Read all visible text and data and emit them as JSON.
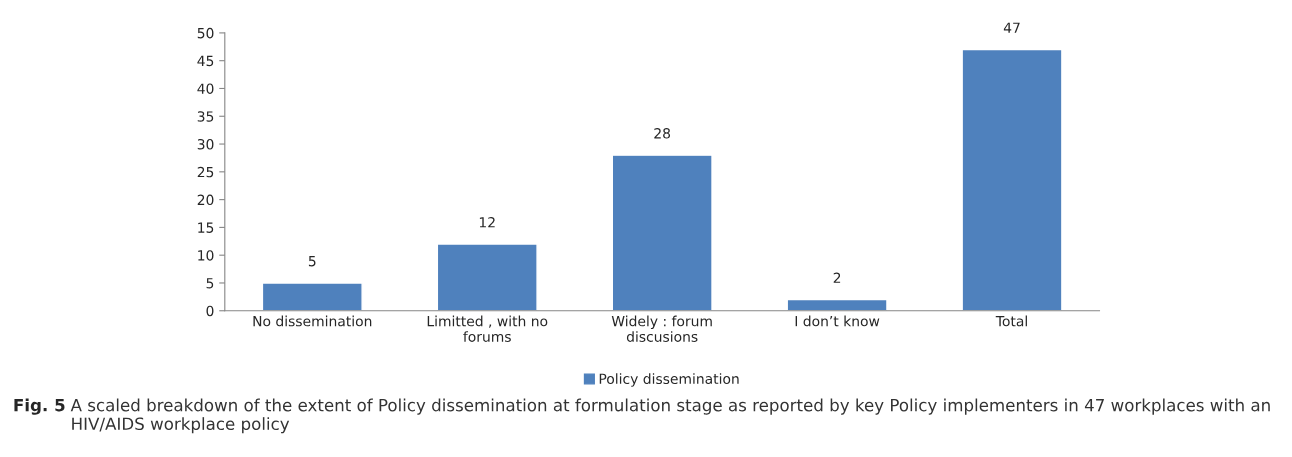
{
  "chart_data": {
    "type": "bar",
    "categories": [
      "No dissemination",
      "Limitted , with no forums",
      "Widely : forum discusions",
      "I don’t know",
      "Total"
    ],
    "series": [
      {
        "name": "Policy dissemination",
        "color": "#4f81bd",
        "values": [
          5,
          12,
          28,
          2,
          47
        ]
      }
    ],
    "ylim": [
      0,
      50
    ],
    "yticks": [
      0,
      5,
      10,
      15,
      20,
      25,
      30,
      35,
      40,
      45,
      50
    ],
    "data_labels": true,
    "grid": false,
    "legend": "bottom",
    "annotations": [
      "Fig. 5",
      "A scaled breakdown of the extent of Policy dissemination at formulation stage as reported by key Policy implementers in 47 workplaces with an HIV/AIDS workplace policy"
    ]
  }
}
